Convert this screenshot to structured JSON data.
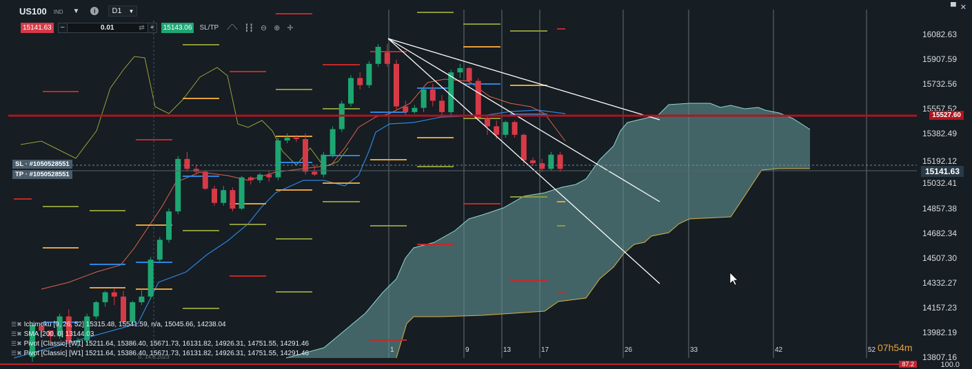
{
  "header": {
    "symbol": "US100",
    "symbol_sub": "IND",
    "timeframe": "D1",
    "info_icon": "info-icon"
  },
  "trade": {
    "sell_price": "15141.63",
    "lot_value": "0.01",
    "buy_price": "15143.06",
    "sltp_label": "SL/TP",
    "minus": "−",
    "plus": "+"
  },
  "toolbar_icons": [
    "line-chart-icon",
    "candle-chart-icon",
    "zoom-out-icon",
    "zoom-in-icon",
    "crosshair-icon"
  ],
  "window_icons": [
    "maximize-icon",
    "close-icon"
  ],
  "chart_data": {
    "type": "candlestick",
    "y_ticks": [
      "16082.63",
      "15907.59",
      "15732.56",
      "15557.52",
      "15382.49",
      "15192.12",
      "15032.41",
      "14857.38",
      "14682.34",
      "14507.30",
      "14332.27",
      "14157.23",
      "13982.19",
      "13807.16"
    ],
    "x_ticks": [
      "1",
      "9",
      "13",
      "17",
      "26",
      "33",
      "42",
      "52"
    ],
    "current_price": "15141.63",
    "resistance_price": "15527.60",
    "candles": [
      [
        13815,
        14060,
        13780,
        14040
      ],
      [
        14030,
        14060,
        13960,
        14000
      ],
      [
        14000,
        14000,
        13920,
        13960
      ],
      [
        13960,
        14120,
        13940,
        14100
      ],
      [
        14100,
        14150,
        13900,
        13920
      ],
      [
        13920,
        13950,
        13880,
        13930
      ],
      [
        13930,
        14120,
        13900,
        14100
      ],
      [
        14100,
        14210,
        14080,
        14200
      ],
      [
        14200,
        14280,
        14170,
        14270
      ],
      [
        14270,
        14300,
        14180,
        14240
      ],
      [
        14240,
        14280,
        14050,
        14060
      ],
      [
        14060,
        14210,
        14040,
        14200
      ],
      [
        14200,
        14300,
        14180,
        14240
      ],
      [
        14240,
        14520,
        14220,
        14500
      ],
      [
        14500,
        14660,
        14480,
        14640
      ],
      [
        14640,
        14860,
        14620,
        14840
      ],
      [
        14840,
        15230,
        14820,
        15210
      ],
      [
        15210,
        15260,
        15120,
        15140
      ],
      [
        15140,
        15170,
        15100,
        15120
      ],
      [
        15120,
        15130,
        14990,
        15000
      ],
      [
        15000,
        15020,
        14880,
        14900
      ],
      [
        14900,
        15020,
        14880,
        14990
      ],
      [
        14990,
        15010,
        14840,
        14860
      ],
      [
        14860,
        15090,
        14850,
        15080
      ],
      [
        15080,
        15090,
        15030,
        15060
      ],
      [
        15060,
        15110,
        15040,
        15100
      ],
      [
        15100,
        15130,
        15050,
        15080
      ],
      [
        15080,
        15360,
        15060,
        15340
      ],
      [
        15340,
        15390,
        15320,
        15360
      ],
      [
        15360,
        15380,
        15330,
        15350
      ],
      [
        15350,
        15390,
        15100,
        15120
      ],
      [
        15120,
        15170,
        15090,
        15100
      ],
      [
        15100,
        15260,
        15080,
        15240
      ],
      [
        15240,
        15440,
        15220,
        15420
      ],
      [
        15420,
        15620,
        15400,
        15600
      ],
      [
        15600,
        15800,
        15580,
        15780
      ],
      [
        15780,
        15820,
        15700,
        15730
      ],
      [
        15730,
        15900,
        15710,
        15880
      ],
      [
        15880,
        16020,
        15860,
        16000
      ],
      [
        15960,
        16020,
        15860,
        15880
      ],
      [
        15880,
        15910,
        15560,
        15580
      ],
      [
        15580,
        15620,
        15520,
        15540
      ],
      [
        15540,
        15590,
        15530,
        15570
      ],
      [
        15570,
        15720,
        15540,
        15700
      ],
      [
        15700,
        15740,
        15580,
        15620
      ],
      [
        15620,
        15660,
        15520,
        15540
      ],
      [
        15540,
        15840,
        15520,
        15820
      ],
      [
        15820,
        15880,
        15780,
        15850
      ],
      [
        15850,
        15860,
        15720,
        15760
      ],
      [
        15760,
        15780,
        15480,
        15500
      ],
      [
        15500,
        15510,
        15380,
        15440
      ],
      [
        15440,
        15480,
        15350,
        15380
      ],
      [
        15380,
        15480,
        15360,
        15470
      ],
      [
        15470,
        15480,
        15360,
        15380
      ],
      [
        15380,
        15390,
        15180,
        15200
      ],
      [
        15200,
        15220,
        15160,
        15180
      ],
      [
        15180,
        15210,
        15120,
        15140
      ],
      [
        15140,
        15260,
        15130,
        15240
      ],
      [
        15240,
        15260,
        15120,
        15140
      ]
    ]
  },
  "sl_tp_boxes": [
    {
      "label": "SL",
      "id": "#1050528551"
    },
    {
      "label": "TP",
      "id": "#1050528551"
    }
  ],
  "legend": [
    "Ichimoku [9, 26, 52] 15315.48, 15541.59, n/a, 15045.66, 14238.04",
    "SMA [200, 0] 13144.03",
    "Pivot [Classic] [W1] 15211.64, 15386.40, 15671.73, 16131.82, 14926.31, 14751.55, 14291.46",
    "Pivot [Classic] [W1] 15211.64, 15386.40, 15671.73, 16131.82, 14926.31, 14751.55, 14291.46"
  ],
  "countdown": {
    "hours": "07h",
    "minutes": "54m"
  },
  "bottom": {
    "indicator_value": "87.2",
    "scale_top": "100.0"
  },
  "date_stamp": "π. 14.6.2023",
  "colors": {
    "background": "#161d23",
    "bull": "#1ea672",
    "bear": "#d63a47",
    "cloud": "#5f8f8f",
    "resistance": "#b0141e"
  }
}
